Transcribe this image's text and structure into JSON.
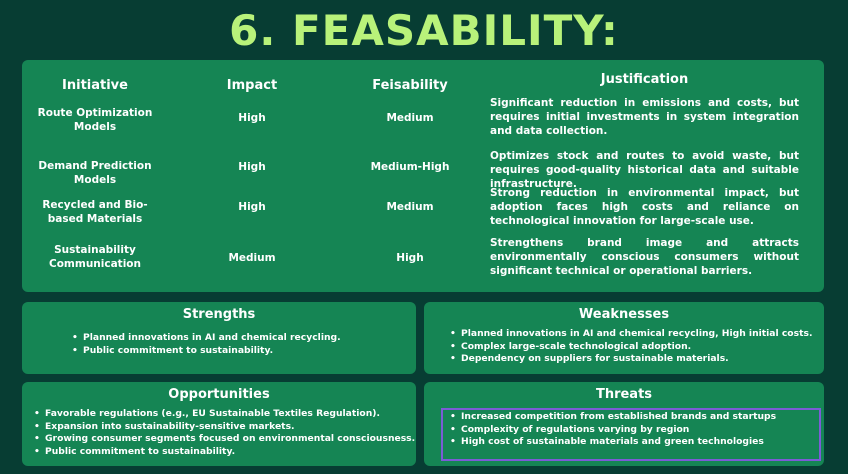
{
  "title": "6. FEASABILITY:",
  "table": {
    "headers": {
      "initiative": "Initiative",
      "impact": "Impact",
      "feasibility": "Feisability",
      "justification": "Justification"
    },
    "rows": [
      {
        "initiative": "Route Optimization Models",
        "impact": "High",
        "feasibility": "Medium",
        "justification": "Significant reduction in emissions and costs, but requires initial investments in system integration and data collection."
      },
      {
        "initiative": "Demand Prediction Models",
        "impact": "High",
        "feasibility": "Medium-High",
        "justification": "Optimizes stock and routes to avoid waste, but requires good-quality historical data and suitable infrastructure."
      },
      {
        "initiative": "Recycled and Bio-based Materials",
        "impact": "High",
        "feasibility": "Medium",
        "justification": "Strong reduction in environmental impact, but adoption faces high costs and reliance on technological innovation for large-scale use."
      },
      {
        "initiative": "Sustainability Communication",
        "impact": "Medium",
        "feasibility": "High",
        "justification": "Strengthens brand image and attracts environmentally conscious consumers without significant technical or operational barriers."
      }
    ]
  },
  "swot": {
    "strengths": {
      "title": "Strengths",
      "items": [
        "Planned innovations in AI and chemical recycling.",
        "Public commitment to sustainability."
      ]
    },
    "weaknesses": {
      "title": "Weaknesses",
      "items": [
        "Planned innovations in AI and chemical recycling, High initial costs.",
        "Complex large-scale technological adoption.",
        "Dependency on suppliers for sustainable materials."
      ]
    },
    "opportunities": {
      "title": "Opportunities",
      "items": [
        "Favorable regulations (e.g., EU Sustainable Textiles Regulation).",
        "Expansion into sustainability-sensitive markets.",
        "Growing consumer segments focused on environmental consciousness.",
        "Public commitment to sustainability."
      ]
    },
    "threats": {
      "title": "Threats",
      "items": [
        "Increased competition from established brands and startups",
        "Complexity of regulations varying by region",
        "High cost of sustainable materials and green technologies"
      ]
    }
  },
  "colors": {
    "background": "#073d33",
    "panel": "#158554",
    "title": "#b8f27a",
    "highlight": "#7b5cd6"
  }
}
